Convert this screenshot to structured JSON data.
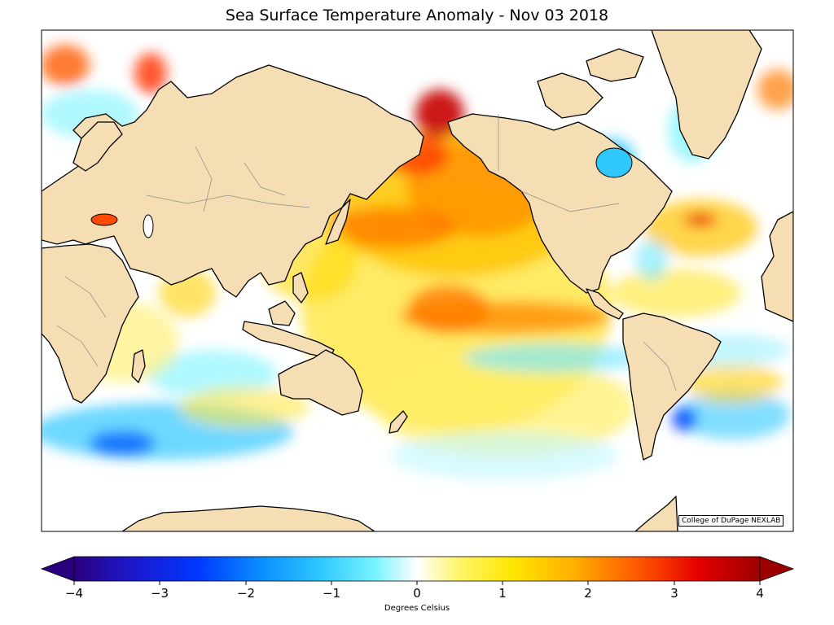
{
  "title": "Sea Surface Temperature Anomaly - Nov 03 2018",
  "credit": "College of DuPage NEXLAB",
  "colorbar": {
    "label": "Degrees Celsius",
    "ticks": [
      "−4",
      "−3",
      "−2",
      "−1",
      "0",
      "1",
      "2",
      "3",
      "4"
    ],
    "min": -4,
    "max": 4,
    "colors": [
      "#2b0080",
      "#0037ff",
      "#0a8cff",
      "#2ec8ff",
      "#7af3ff",
      "#ffffff",
      "#fff56b",
      "#ffe600",
      "#ffae00",
      "#ff5a00",
      "#e60000",
      "#9c0000"
    ]
  },
  "colors": {
    "land": "#f5deb3",
    "coast": "#000000",
    "border": "#8c8c8c",
    "ocean_neutral": "#ffffff"
  },
  "icons": [
    "colorbar-left-arrow-icon",
    "colorbar-right-arrow-icon"
  ]
}
